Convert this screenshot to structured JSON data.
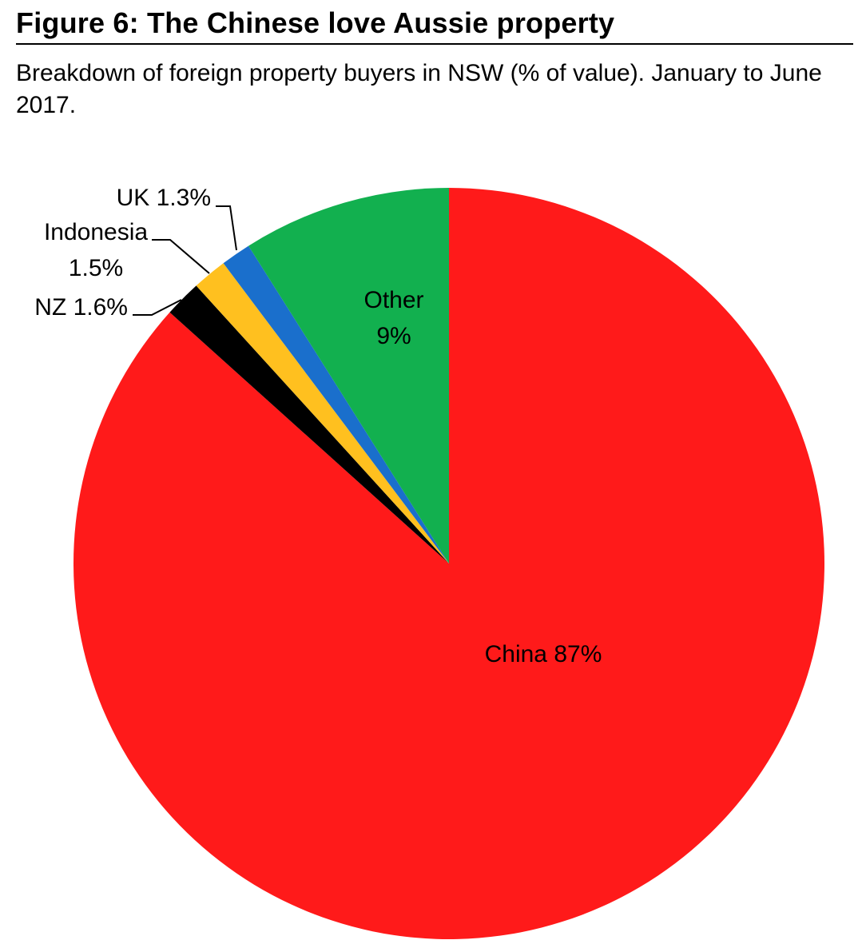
{
  "header": {
    "title": "Figure 6: The Chinese love Aussie property",
    "subtitle": "Breakdown of foreign property buyers in NSW (% of value). January to June 2017."
  },
  "chart_data": {
    "type": "pie",
    "start_angle_deg": 0,
    "direction": "clockwise",
    "slices": [
      {
        "name": "China",
        "value": 87,
        "color": "#ff1a1a",
        "label_lines": [
          "China 87%"
        ]
      },
      {
        "name": "NZ",
        "value": 1.6,
        "color": "#000000",
        "label_lines": [
          "NZ 1.6%"
        ]
      },
      {
        "name": "Indonesia",
        "value": 1.5,
        "color": "#ffc01f",
        "label_lines": [
          "Indonesia",
          "1.5%"
        ]
      },
      {
        "name": "UK",
        "value": 1.3,
        "color": "#1a6fcc",
        "label_lines": [
          "UK 1.3%"
        ]
      },
      {
        "name": "Other",
        "value": 9,
        "color": "#12b04f",
        "label_lines": [
          "Other",
          "9%"
        ]
      }
    ]
  }
}
